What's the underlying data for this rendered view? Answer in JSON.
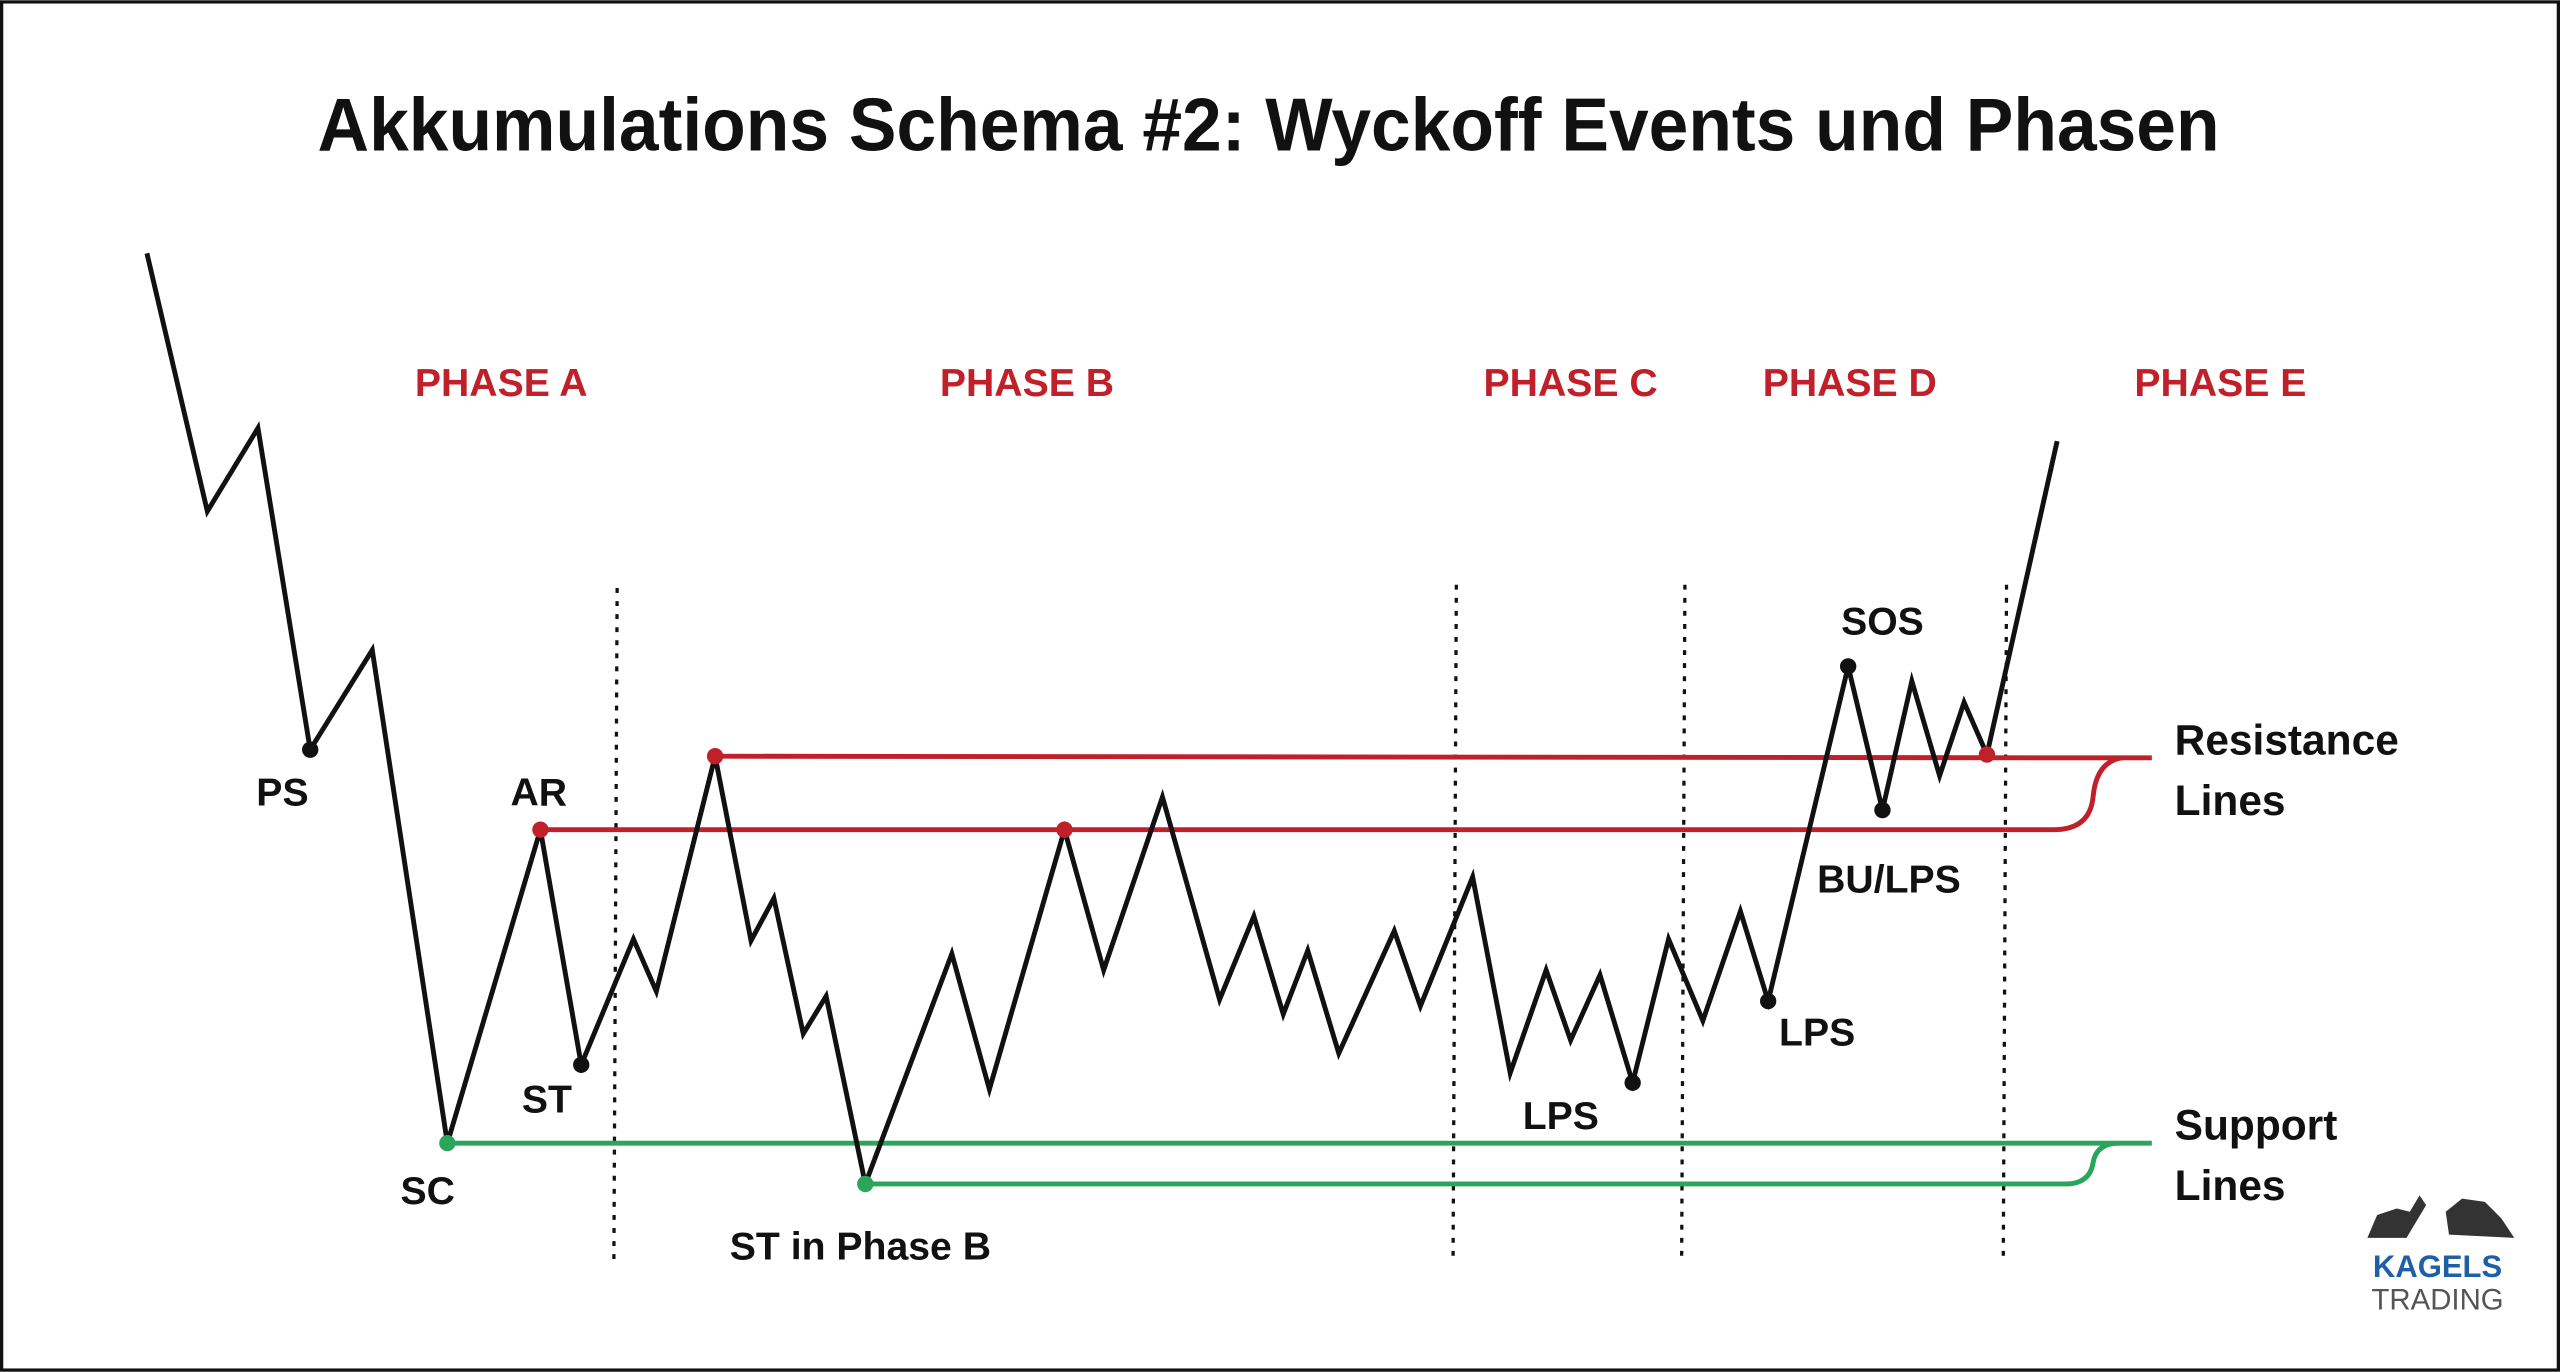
{
  "title": "Akkumulations Schema #2: Wyckoff Events und Phasen",
  "phases": [
    "PHASE A",
    "PHASE B",
    "PHASE C",
    "PHASE D",
    "PHASE E"
  ],
  "events": [
    "PS",
    "AR",
    "SC",
    "ST",
    "ST in Phase B",
    "LPS",
    "LPS",
    "SOS",
    "BU/LPS"
  ],
  "resistance_label": [
    "Resistance",
    "Lines"
  ],
  "support_label": [
    "Support",
    "Lines"
  ],
  "logo": {
    "line1": "KAGELS",
    "line2": "TRADING"
  }
}
